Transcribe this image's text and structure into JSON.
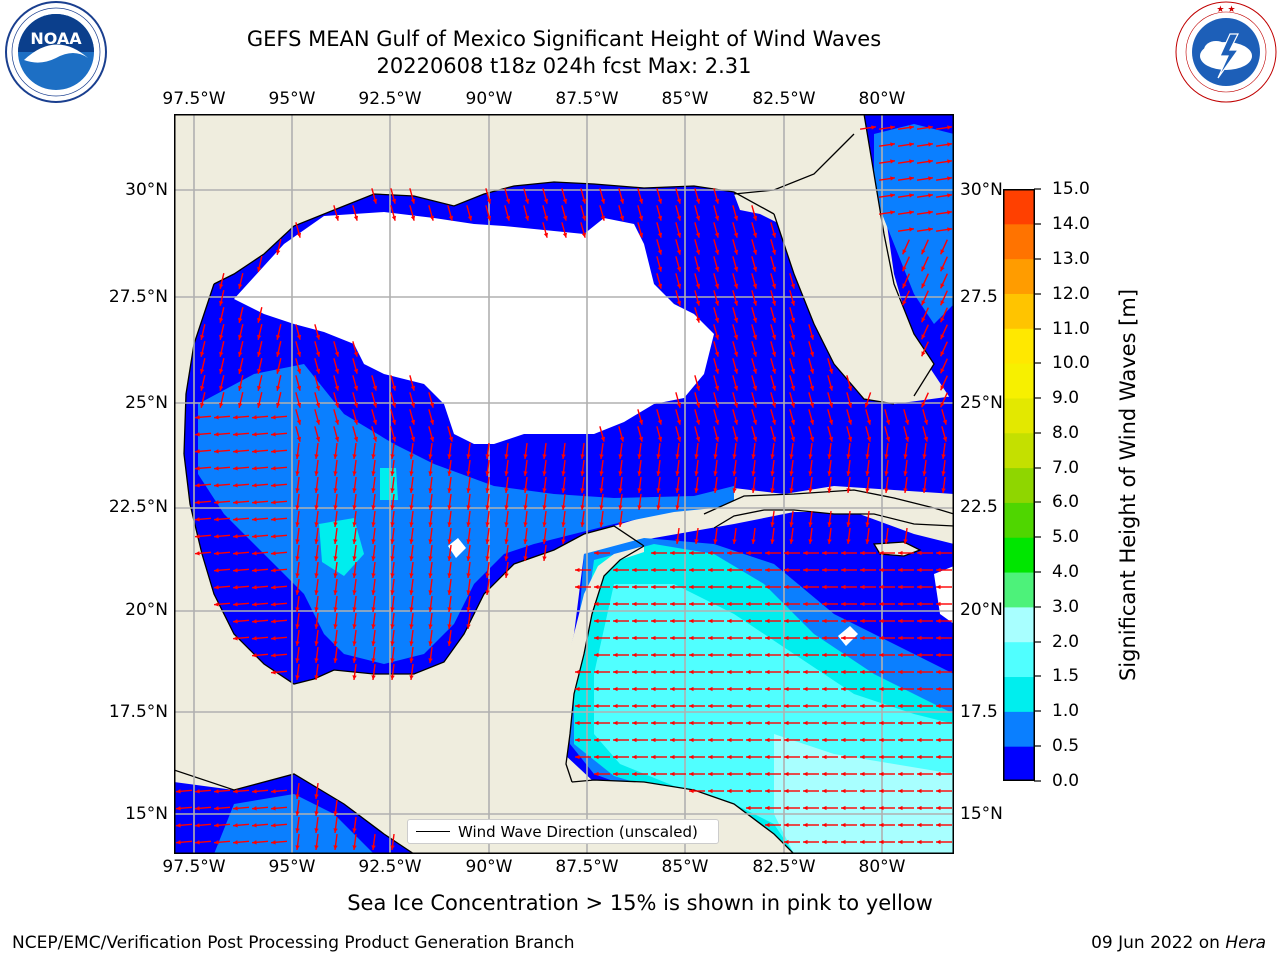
{
  "title": {
    "line1": "GEFS MEAN Gulf of Mexico Significant Height of Wind Waves",
    "line2": "20220608 t18z 024h fcst   Max: 2.31"
  },
  "map": {
    "lon_labels": [
      "97.5°W",
      "95°W",
      "92.5°W",
      "90°W",
      "87.5°W",
      "85°W",
      "82.5°W",
      "80°W"
    ],
    "lat_labels_left": [
      "30°N",
      "27.5°N",
      "25°N",
      "22.5°N",
      "20°N",
      "17.5°N",
      "15°N"
    ],
    "lat_labels_right": [
      "30°N",
      "27.5",
      "25°N",
      "22.5",
      "20°N",
      "17.5",
      "15°N"
    ],
    "legend_label": "Wind Wave Direction (unscaled)",
    "arrow_color": "#ff0000",
    "land_color": "#efedde",
    "no_data_color": "#ffffff"
  },
  "colorbar": {
    "title": "Significant Height of Wind Waves [m]",
    "ticks": [
      "15.0",
      "14.0",
      "13.0",
      "12.0",
      "11.0",
      "10.0",
      "9.0",
      "8.0",
      "7.0",
      "6.0",
      "5.0",
      "4.0",
      "3.0",
      "2.0",
      "1.5",
      "1.0",
      "0.5",
      "0.0"
    ],
    "colors": [
      "#0000ff",
      "#0a7fff",
      "#00eeee",
      "#50ffff",
      "#a8ffff",
      "#4df27a",
      "#00e600",
      "#4fd600",
      "#8fd600",
      "#c4e000",
      "#e3e800",
      "#f7f000",
      "#ffe800",
      "#ffc400",
      "#ff9c00",
      "#ff7300",
      "#ff4000",
      "#ff0000"
    ]
  },
  "logos": {
    "noaa_text": "NOAA",
    "noaa_ring_text": "NATIONAL OCEANIC AND ATMOSPHERIC ADMINISTRATION",
    "noaa_bottom_text": "U.S. DEPARTMENT OF COMMERCE",
    "nws_ring_text": "NATIONAL WEATHER SERVICE"
  },
  "footer": {
    "subtitle": "Sea Ice Concentration > 15% is shown in pink to yellow",
    "credit": "NCEP/EMC/Verification Post Processing Product Generation Branch",
    "date": "09 Jun 2022 on ",
    "machine": "Hera"
  }
}
